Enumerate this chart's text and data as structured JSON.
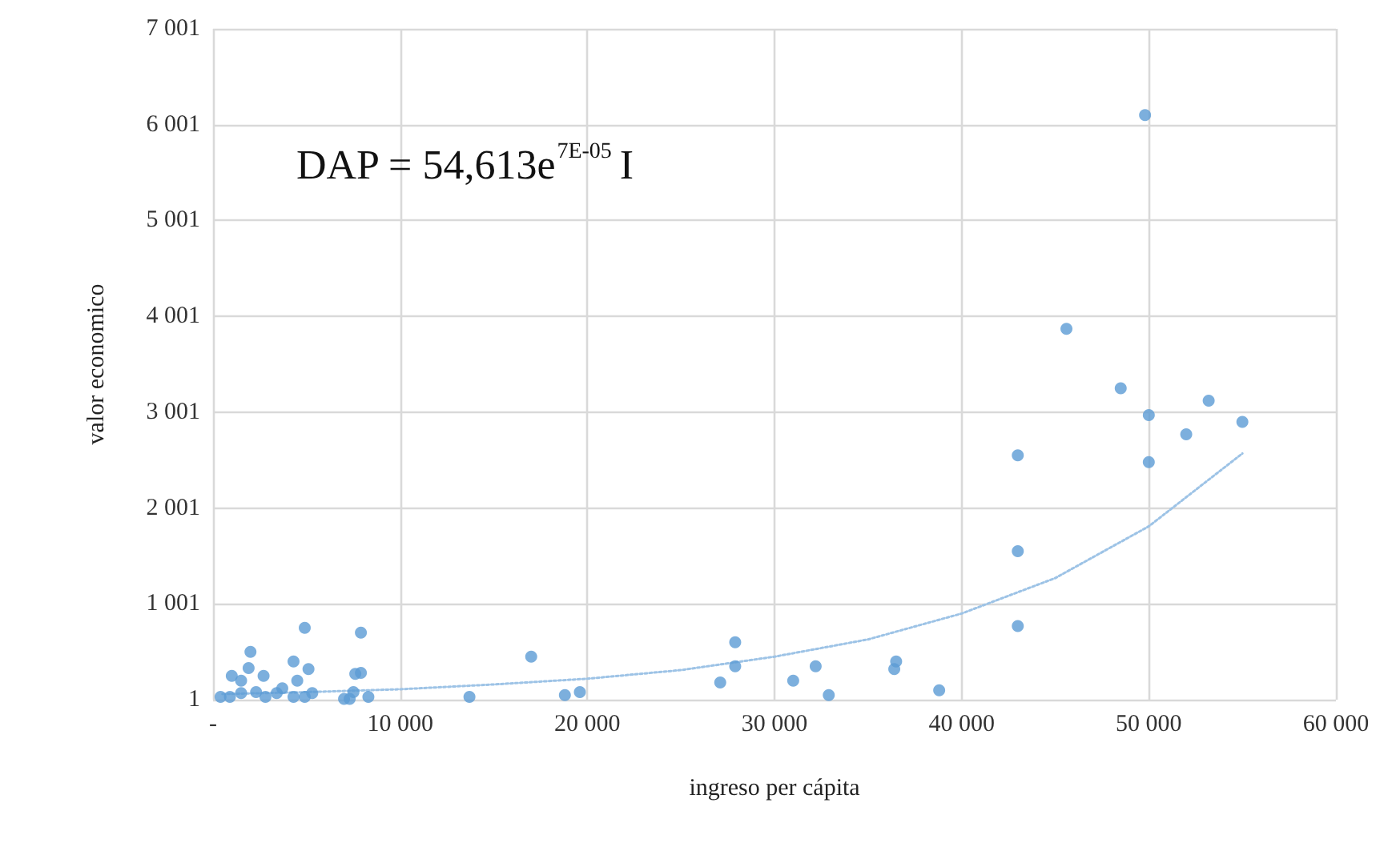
{
  "chart_data": {
    "type": "scatter",
    "xlabel": "ingreso per cápita",
    "ylabel": "valor economico",
    "annotations": [
      "DAP = 54,613e$^{7E-05}$I"
    ],
    "xlim": [
      0,
      60000
    ],
    "ylim": [
      1,
      7001
    ],
    "xticks": [
      {
        "value": 0,
        "label": "-"
      },
      {
        "value": 10000,
        "label": "10 000"
      },
      {
        "value": 20000,
        "label": "20 000"
      },
      {
        "value": 30000,
        "label": "30 000"
      },
      {
        "value": 40000,
        "label": "40 000"
      },
      {
        "value": 50000,
        "label": "50 000"
      },
      {
        "value": 60000,
        "label": "60 000"
      }
    ],
    "yticks": [
      {
        "value": 1,
        "label": "1"
      },
      {
        "value": 1001,
        "label": "1 001"
      },
      {
        "value": 2001,
        "label": "2 001"
      },
      {
        "value": 3001,
        "label": "3 001"
      },
      {
        "value": 4001,
        "label": "4 001"
      },
      {
        "value": 5001,
        "label": "5 001"
      },
      {
        "value": 6001,
        "label": "6 001"
      },
      {
        "value": 7001,
        "label": "7 001"
      }
    ],
    "grid": true,
    "marker": "circle",
    "series": [
      {
        "color": "#5b9bd5",
        "x": [
          49800,
          45600,
          48500,
          50000,
          50000,
          52000,
          53200,
          55000,
          43000,
          43000,
          43000,
          36500,
          36400,
          38800,
          32900,
          32200,
          31000,
          27900,
          27900,
          27100,
          17000,
          13700,
          18800,
          19600,
          4900,
          7900,
          2000,
          4300,
          5100,
          7900,
          7600,
          1000,
          1900,
          2700,
          1500,
          4500,
          3700,
          4500,
          5300,
          400,
          900,
          1500,
          2300,
          2800,
          3400,
          4300,
          4900,
          7000,
          7500,
          7300,
          8300
        ],
        "values": [
          6100,
          3870,
          3250,
          2970,
          2480,
          2770,
          3120,
          2900,
          2550,
          1550,
          770,
          400,
          320,
          100,
          50,
          350,
          200,
          600,
          350,
          180,
          450,
          30,
          50,
          80,
          750,
          700,
          500,
          400,
          320,
          280,
          270,
          250,
          330,
          250,
          200,
          200,
          120,
          null,
          70,
          30,
          30,
          70,
          80,
          30,
          70,
          30,
          30,
          10,
          80,
          10,
          30
        ]
      },
      {
        "type": "line",
        "color": "#9dc3e6",
        "line_style": "dotted",
        "marker": "none",
        "x": [
          500,
          5000,
          10000,
          15000,
          20000,
          25000,
          30000,
          35000,
          40000,
          45000,
          50000,
          55000
        ],
        "values": [
          60,
          80,
          110,
          160,
          220,
          310,
          450,
          630,
          900,
          1270,
          1810,
          2570
        ]
      }
    ]
  }
}
